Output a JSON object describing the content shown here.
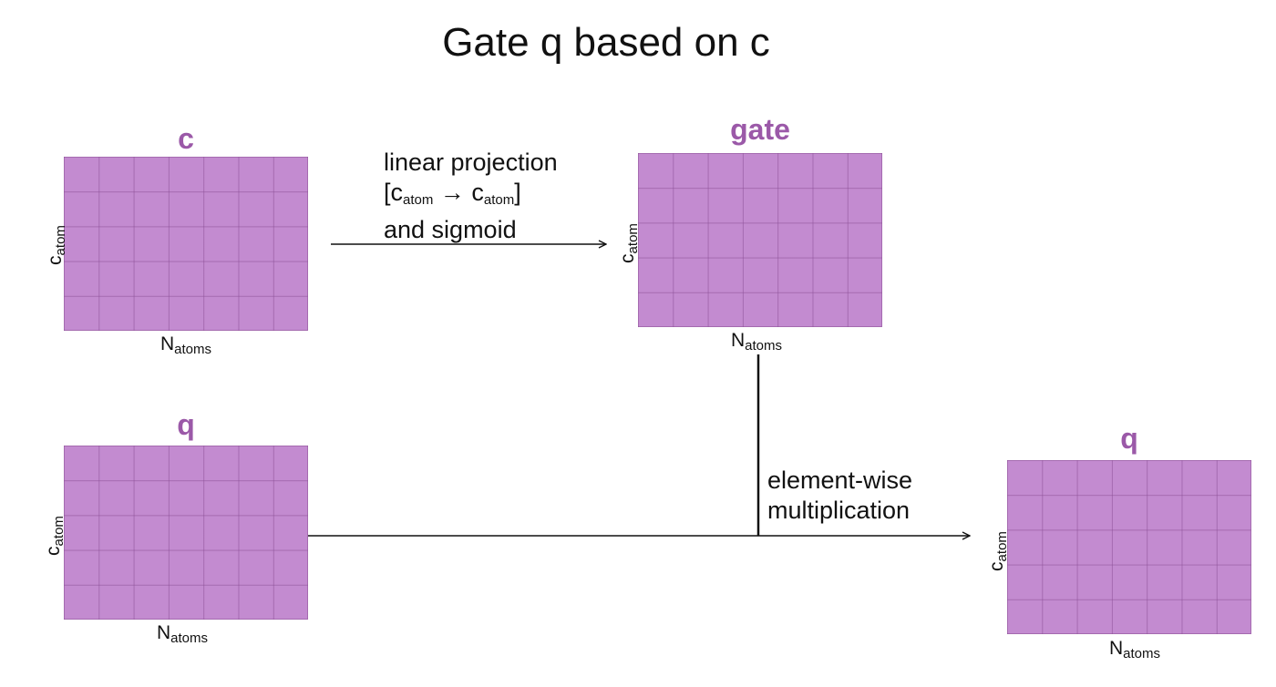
{
  "title": "Gate q based on c",
  "matrices": {
    "c": {
      "label": "c",
      "x_main": "N",
      "x_sub": "atoms",
      "y_main": "c",
      "y_sub": "atom"
    },
    "gate": {
      "label": "gate",
      "x_main": "N",
      "x_sub": "atoms",
      "y_main": "c",
      "y_sub": "atom"
    },
    "q_input": {
      "label": "q",
      "x_main": "N",
      "x_sub": "atoms",
      "y_main": "c",
      "y_sub": "atom"
    },
    "q_output": {
      "label": "q",
      "x_main": "N",
      "x_sub": "atoms",
      "y_main": "c",
      "y_sub": "atom"
    }
  },
  "annotations": {
    "projection": {
      "line1": "linear projection",
      "open_bracket": "[c",
      "sub1": "atom",
      "arrow": " → c",
      "sub2": "atom",
      "close_bracket": "]",
      "line3": "and sigmoid"
    },
    "multiply": {
      "line1": "element-wise",
      "line2": "multiplication"
    }
  },
  "colors": {
    "matrix_fill": "#c38bd0",
    "matrix_grid": "#8c5096",
    "label": "#9b59a8"
  }
}
